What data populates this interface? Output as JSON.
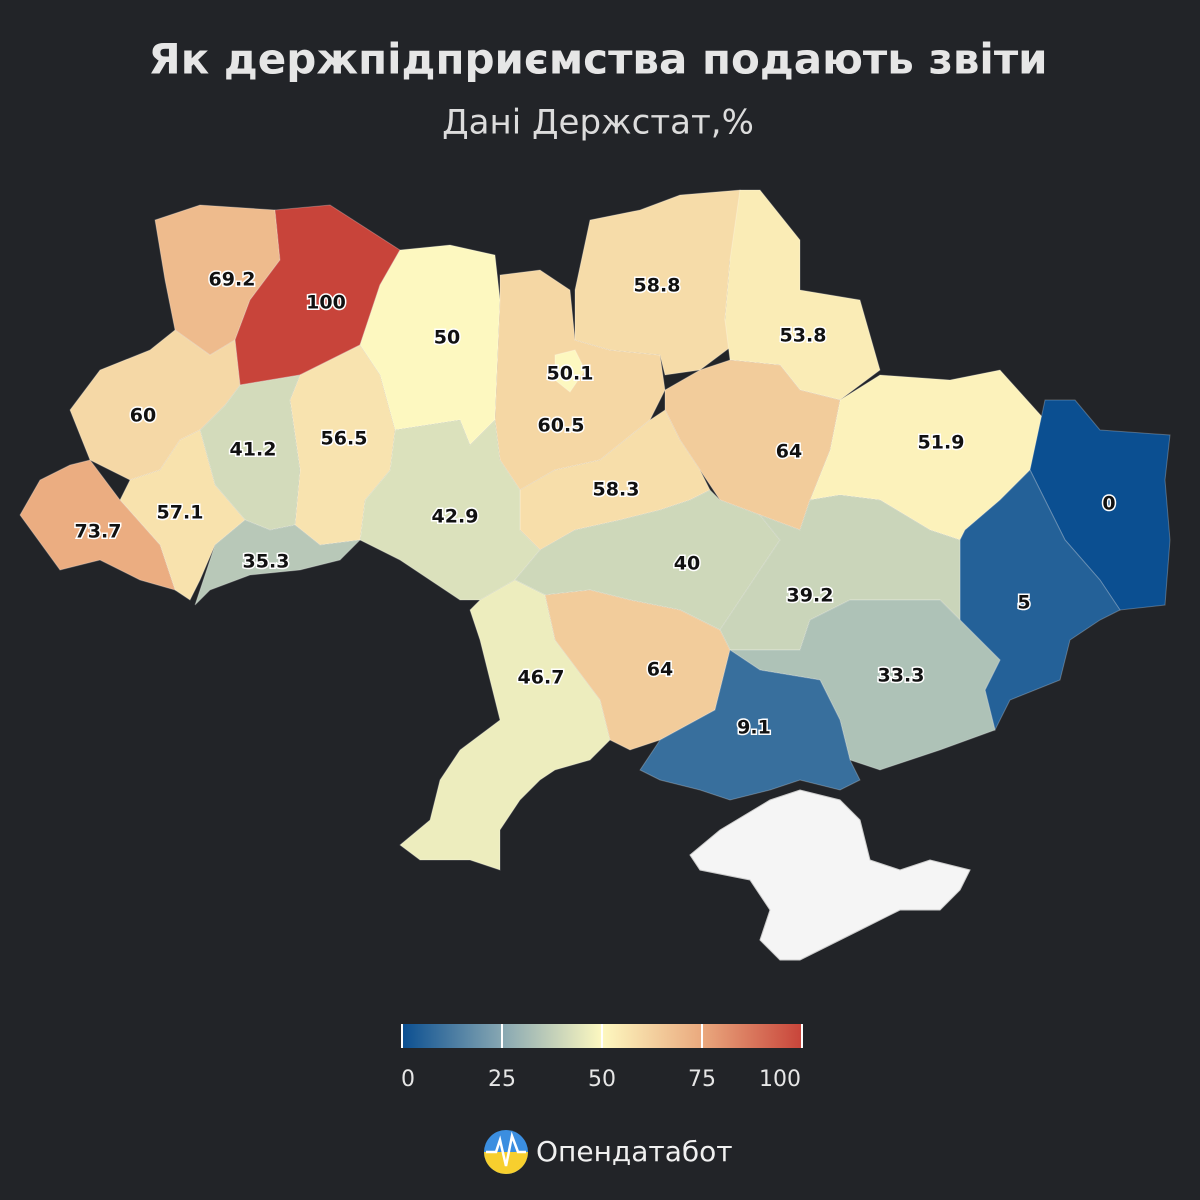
{
  "chart_data": {
    "type": "choropleth",
    "title": "Як держпідприємства подають звіти",
    "subtitle": "Дані Держстат,%",
    "values": [
      69.2,
      100,
      50,
      60.5,
      50.1,
      58.8,
      53.8,
      51.9,
      0,
      5,
      64,
      58.3,
      42.9,
      56.5,
      41.2,
      60,
      57.1,
      73.7,
      35.3,
      40,
      39.2,
      33.3,
      64,
      9.1,
      46.7
    ],
    "colorbar": {
      "ticks": [
        0,
        25,
        50,
        75,
        100
      ],
      "colors": [
        "#0b4f91",
        "#87a7b2",
        "#fdf8c0",
        "#eaa97e",
        "#c8443a"
      ]
    }
  },
  "brand": "Опендатабот"
}
